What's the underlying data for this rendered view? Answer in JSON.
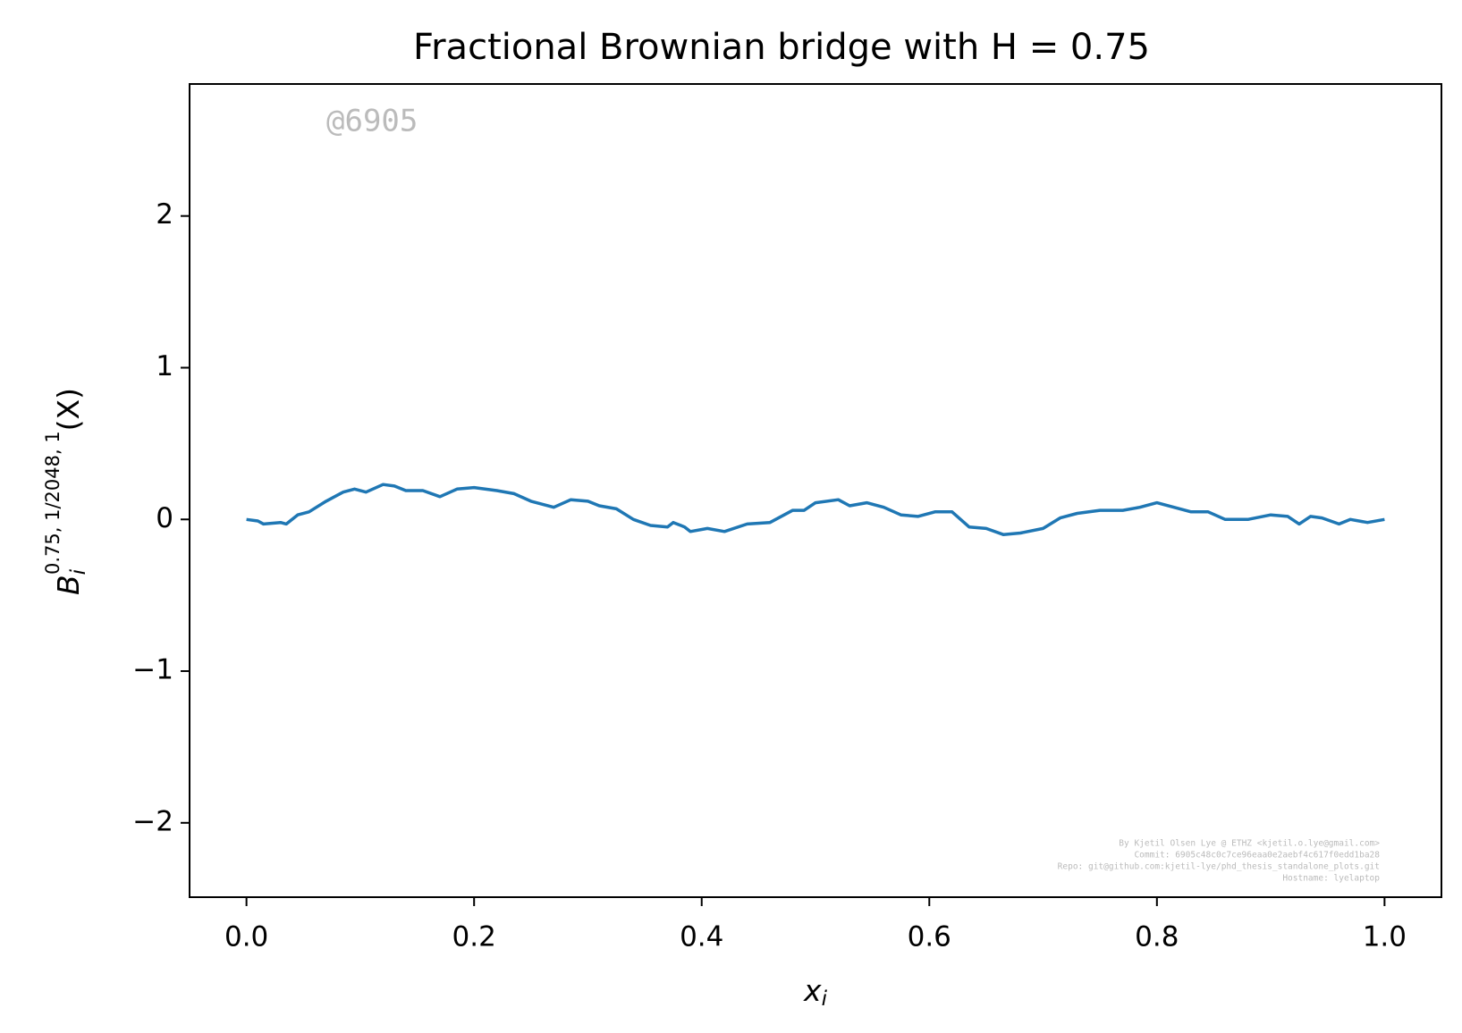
{
  "chart_data": {
    "type": "line",
    "title": "Fractional Brownian bridge with H = 0.75",
    "x_label": {
      "base": "x",
      "sub": "i"
    },
    "y_label": {
      "base": "B",
      "sub": "i",
      "sup": "0.75, 1/2048, 1",
      "arg": "(X)"
    },
    "watermark": "@6905",
    "footer": [
      "By Kjetil Olsen Lye @ ETHZ <kjetil.o.lye@gmail.com>",
      "Commit: 6905c48c0c7ce96eaa0e2aebf4c617f0edd1ba28",
      "Repo: git@github.com:kjetil-lye/phd_thesis_standalone_plots.git",
      "Hostname: lyelaptop"
    ],
    "color": "#1f77b4",
    "x": [
      0.0,
      0.01,
      0.015,
      0.03,
      0.035,
      0.045,
      0.055,
      0.07,
      0.085,
      0.095,
      0.105,
      0.12,
      0.13,
      0.14,
      0.155,
      0.17,
      0.185,
      0.2,
      0.22,
      0.235,
      0.25,
      0.27,
      0.285,
      0.3,
      0.31,
      0.325,
      0.34,
      0.355,
      0.37,
      0.375,
      0.385,
      0.39,
      0.405,
      0.42,
      0.44,
      0.46,
      0.48,
      0.49,
      0.5,
      0.52,
      0.53,
      0.545,
      0.56,
      0.575,
      0.59,
      0.605,
      0.62,
      0.635,
      0.65,
      0.665,
      0.68,
      0.7,
      0.715,
      0.73,
      0.75,
      0.77,
      0.785,
      0.8,
      0.815,
      0.83,
      0.845,
      0.86,
      0.88,
      0.9,
      0.915,
      0.925,
      0.935,
      0.945,
      0.96,
      0.97,
      0.985,
      1.0
    ],
    "values": [
      0.0,
      -0.01,
      -0.03,
      -0.02,
      -0.03,
      0.03,
      0.05,
      0.12,
      0.18,
      0.2,
      0.18,
      0.23,
      0.22,
      0.19,
      0.19,
      0.15,
      0.2,
      0.21,
      0.19,
      0.17,
      0.12,
      0.08,
      0.13,
      0.12,
      0.09,
      0.07,
      0.0,
      -0.04,
      -0.05,
      -0.02,
      -0.05,
      -0.08,
      -0.06,
      -0.08,
      -0.03,
      -0.02,
      0.06,
      0.06,
      0.11,
      0.13,
      0.09,
      0.11,
      0.08,
      0.03,
      0.02,
      0.05,
      0.05,
      -0.05,
      -0.06,
      -0.1,
      -0.09,
      -0.06,
      0.01,
      0.04,
      0.06,
      0.06,
      0.08,
      0.11,
      0.08,
      0.05,
      0.05,
      0.0,
      0.0,
      0.03,
      0.02,
      -0.03,
      0.02,
      0.01,
      -0.03,
      0.0,
      -0.02,
      0.0
    ],
    "xlim": [
      -0.05,
      1.05
    ],
    "ylim": [
      -2.49,
      2.87
    ],
    "xticks": [
      {
        "value": 0,
        "label": "0.0"
      },
      {
        "value": 0.2,
        "label": "0.2"
      },
      {
        "value": 0.4,
        "label": "0.4"
      },
      {
        "value": 0.6,
        "label": "0.6"
      },
      {
        "value": 0.8,
        "label": "0.8"
      },
      {
        "value": 1,
        "label": "1.0"
      }
    ],
    "yticks": [
      {
        "value": -2,
        "label": "−2"
      },
      {
        "value": -1,
        "label": "−1"
      },
      0,
      1,
      2
    ],
    "grid": false
  }
}
